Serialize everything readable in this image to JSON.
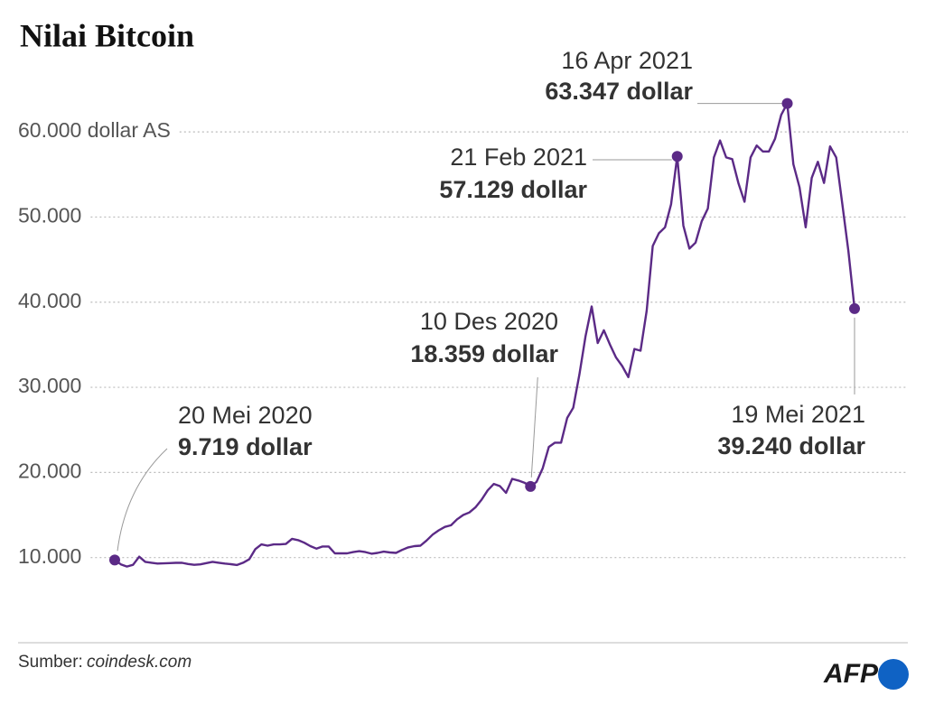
{
  "chart_data": {
    "type": "line",
    "title": "Nilai Bitcoin",
    "source_label": "Sumber:",
    "source": "coindesk.com",
    "logo": "AFP",
    "color": "#5b2a86",
    "grid": true,
    "ylim": [
      0,
      65000
    ],
    "yticks": [
      {
        "value": 10000,
        "label": "10.000"
      },
      {
        "value": 20000,
        "label": "20.000"
      },
      {
        "value": 30000,
        "label": "30.000"
      },
      {
        "value": 40000,
        "label": "40.000"
      },
      {
        "value": 50000,
        "label": "50.000"
      },
      {
        "value": 60000,
        "label": "60.000 dollar AS"
      }
    ],
    "categories": [
      "20 Mei 2020",
      null,
      null,
      null,
      null,
      null,
      null,
      null,
      null,
      null,
      null,
      null,
      null,
      null,
      null,
      null,
      null,
      null,
      null,
      null,
      null,
      null,
      null,
      null,
      null,
      null,
      null,
      null,
      null,
      null,
      null,
      null,
      null,
      null,
      null,
      null,
      null,
      null,
      null,
      null,
      null,
      null,
      null,
      null,
      null,
      null,
      null,
      null,
      null,
      null,
      null,
      null,
      null,
      null,
      null,
      null,
      null,
      null,
      null,
      null,
      null,
      null,
      null,
      null,
      null,
      null,
      null,
      null,
      "10 Des 2020",
      null,
      null,
      null,
      null,
      null,
      null,
      null,
      null,
      null,
      null,
      null,
      null,
      null,
      null,
      null,
      null,
      null,
      null,
      null,
      null,
      null,
      null,
      null,
      "21 Feb 2021",
      null,
      null,
      null,
      null,
      null,
      null,
      null,
      null,
      null,
      null,
      null,
      null,
      null,
      null,
      null,
      null,
      null,
      "16  Apr 2021",
      null,
      null,
      null,
      null,
      null,
      null,
      null,
      null,
      null,
      null,
      "19 Mei 2021"
    ],
    "values": [
      9719,
      9200,
      8950,
      9150,
      10100,
      9500,
      9400,
      9300,
      9320,
      9350,
      9380,
      9380,
      9250,
      9150,
      9200,
      9350,
      9500,
      9400,
      9300,
      9230,
      9130,
      9400,
      9800,
      11000,
      11550,
      11400,
      11550,
      11550,
      11600,
      12200,
      12050,
      11750,
      11350,
      11050,
      11300,
      11300,
      10500,
      10500,
      10500,
      10650,
      10750,
      10650,
      10450,
      10550,
      10700,
      10600,
      10550,
      10900,
      11200,
      11350,
      11400,
      12000,
      12700,
      13200,
      13600,
      13800,
      14500,
      15000,
      15300,
      15900,
      16800,
      17900,
      18650,
      18400,
      17600,
      19250,
      19050,
      18800,
      18359,
      18900,
      20500,
      23000,
      23500,
      23500,
      26400,
      27600,
      31500,
      36000,
      39500,
      35200,
      36700,
      35000,
      33500,
      32500,
      31200,
      34500,
      34300,
      39000,
      46600,
      48100,
      48800,
      51500,
      57129,
      49000,
      46300,
      47000,
      49500,
      51000,
      57000,
      59000,
      57000,
      56800,
      54000,
      51800,
      57000,
      58400,
      57700,
      57700,
      59200,
      62000,
      63347,
      56200,
      53500,
      48800,
      54600,
      56500,
      54000,
      58300,
      57000,
      51500,
      46000,
      39240
    ],
    "value_labels": [
      "9.719 dollar",
      null,
      null,
      null,
      null,
      null,
      null,
      null,
      null,
      null,
      null,
      null,
      null,
      null,
      null,
      null,
      null,
      null,
      null,
      null,
      null,
      null,
      null,
      null,
      null,
      null,
      null,
      null,
      null,
      null,
      null,
      null,
      null,
      null,
      null,
      null,
      null,
      null,
      null,
      null,
      null,
      null,
      null,
      null,
      null,
      null,
      null,
      null,
      null,
      null,
      null,
      null,
      null,
      null,
      null,
      null,
      null,
      null,
      null,
      null,
      null,
      null,
      null,
      null,
      null,
      null,
      null,
      null,
      "18.359 dollar",
      null,
      null,
      null,
      null,
      null,
      null,
      null,
      null,
      null,
      null,
      null,
      null,
      null,
      null,
      null,
      null,
      null,
      null,
      null,
      null,
      null,
      null,
      null,
      "57.129 dollar",
      null,
      null,
      null,
      null,
      null,
      null,
      null,
      null,
      null,
      null,
      null,
      null,
      null,
      null,
      null,
      null,
      null,
      "63.347 dollar",
      null,
      null,
      null,
      null,
      null,
      null,
      null,
      null,
      null,
      null,
      "39.240 dollar"
    ]
  }
}
